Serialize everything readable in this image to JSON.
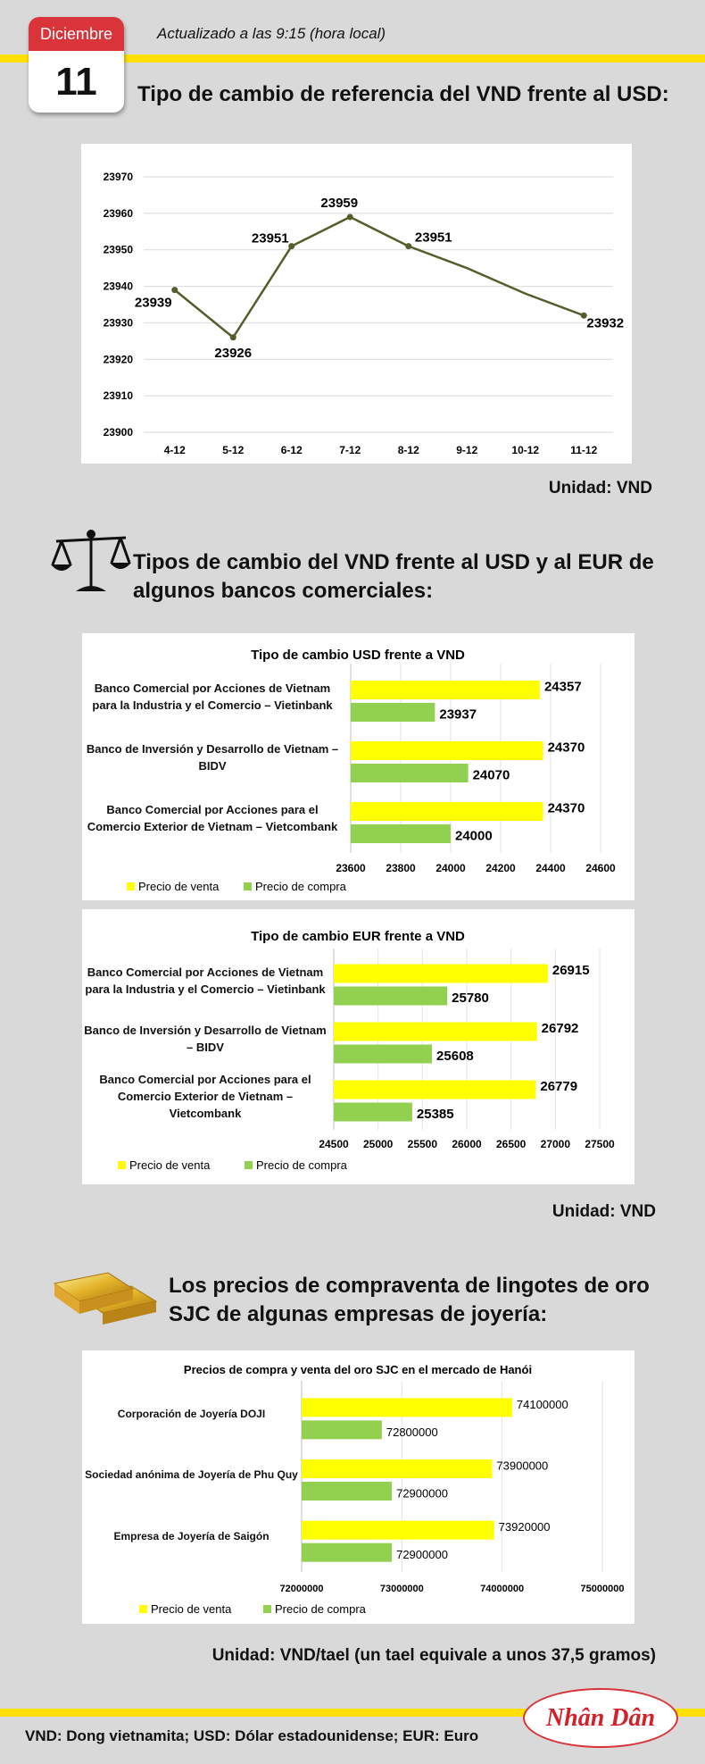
{
  "header": {
    "month": "Diciembre",
    "day": "11",
    "updated": "Actualizado a las 9:15 (hora local)"
  },
  "titles": [
    "Tipo de cambio de referencia del VND frente al USD:",
    "Tipos de cambio del VND frente al USD y al EUR de algunos bancos comerciales:",
    "Los precios de compraventa de lingotes de oro SJC de algunas empresas de joyería:"
  ],
  "units": [
    "Unidad: VND",
    "Unidad: VND",
    "Unidad: VND/tael (un tael equivale a unos 37,5 gramos)"
  ],
  "footer": "VND: Dong vietnamita; USD: Dólar estadounidense; EUR: Euro",
  "logo": "Nhân Dân",
  "chart_data": [
    {
      "type": "line",
      "categories": [
        "4-12",
        "5-12",
        "6-12",
        "7-12",
        "8-12",
        "9-12",
        "10-12",
        "11-12"
      ],
      "values": [
        23939,
        23926,
        23951,
        23959,
        23951,
        23945,
        23938,
        23932
      ],
      "value_labels": [
        "23939",
        "23926",
        "23951",
        "23959",
        "23951",
        null,
        null,
        "23932"
      ],
      "color": "#545d2c",
      "ylim": [
        23900,
        23970
      ],
      "yticks": [
        23900,
        23910,
        23920,
        23930,
        23940,
        23950,
        23960,
        23970
      ],
      "grid": true
    },
    {
      "type": "hbar",
      "title": "Tipo de cambio USD frente a VND",
      "categories": [
        "Banco Comercial por Acciones de Vietnam para la Industria y el Comercio – Vietinbank",
        "Banco de Inversión y Desarrollo de Vietnam – BIDV",
        "Banco Comercial por Acciones para el Comercio Exterior de Vietnam – Vietcombank"
      ],
      "series": [
        {
          "name": "Precio de venta",
          "color": "#ffff00",
          "values": [
            24357,
            24370,
            24370
          ]
        },
        {
          "name": "Precio de compra",
          "color": "#92d050",
          "values": [
            23937,
            24070,
            24000
          ]
        }
      ],
      "xlim": [
        23600,
        24600
      ],
      "xticks": [
        23600,
        23800,
        24000,
        24200,
        24400,
        24600
      ],
      "grid": true,
      "legend": "bottom"
    },
    {
      "type": "hbar",
      "title": "Tipo de cambio EUR frente a VND",
      "categories": [
        "Banco Comercial por Acciones de Vietnam para la Industria y el Comercio – Vietinbank",
        "Banco de Inversión y Desarrollo de Vietnam – BIDV",
        "Banco Comercial por Acciones para el Comercio Exterior de Vietnam – Vietcombank"
      ],
      "series": [
        {
          "name": "Precio de venta",
          "color": "#ffff00",
          "values": [
            26915,
            26792,
            26779
          ]
        },
        {
          "name": "Precio de compra",
          "color": "#92d050",
          "values": [
            25780,
            25608,
            25385
          ]
        }
      ],
      "xlim": [
        24500,
        27500
      ],
      "xticks": [
        24500,
        25000,
        25500,
        26000,
        26500,
        27000,
        27500
      ],
      "grid": true,
      "legend": "bottom"
    },
    {
      "type": "hbar",
      "title": "Precios de compra y venta del oro SJC en el mercado de Hanói",
      "categories": [
        "Corporación de Joyería DOJI",
        "Sociedad anónima de Joyería de Phu Quy",
        "Empresa de Joyería de Saigón"
      ],
      "series": [
        {
          "name": "Precio de venta",
          "color": "#ffff00",
          "values": [
            74100000,
            73900000,
            73920000
          ]
        },
        {
          "name": "Precio de compra",
          "color": "#92d050",
          "values": [
            72800000,
            72900000,
            72900000
          ]
        }
      ],
      "xlim": [
        72000000,
        75000000
      ],
      "xticks": [
        72000000,
        73000000,
        74000000,
        75000000
      ],
      "grid": true,
      "legend": "bottom"
    }
  ]
}
